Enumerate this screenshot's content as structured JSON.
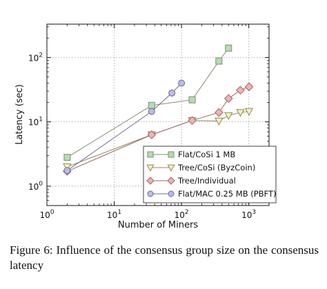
{
  "chart_data": {
    "type": "line",
    "xscale": "log",
    "yscale": "log",
    "xlim": [
      1,
      2000
    ],
    "ylim": [
      0.5,
      330
    ],
    "xlabel": "Number of Miners",
    "ylabel": "Latency (sec)",
    "xticks": [
      {
        "value": 1,
        "base": "10",
        "exp": "0"
      },
      {
        "value": 10,
        "base": "10",
        "exp": "1"
      },
      {
        "value": 100,
        "base": "10",
        "exp": "2"
      },
      {
        "value": 1000,
        "base": "10",
        "exp": "3"
      }
    ],
    "yticks": [
      {
        "value": 1,
        "base": "10",
        "exp": "0"
      },
      {
        "value": 10,
        "base": "10",
        "exp": "1"
      },
      {
        "value": 100,
        "base": "10",
        "exp": "2"
      }
    ],
    "grid": true,
    "legend_position": "bottom-right",
    "series": [
      {
        "name": "Flat/CoSi 1 MB",
        "marker": "square",
        "color": "#7a8f6e",
        "fill": "#b6dcb0",
        "points": [
          [
            2,
            2.8
          ],
          [
            36,
            18
          ],
          [
            144,
            22
          ],
          [
            360,
            88
          ],
          [
            500,
            140
          ]
        ]
      },
      {
        "name": "Tree/CoSi (ByzCoin)",
        "marker": "triangle-down",
        "color": "#8f8a5a",
        "fill": "#f4f0b8",
        "points": [
          [
            2,
            2.0
          ],
          [
            36,
            6.3
          ],
          [
            144,
            10.5
          ],
          [
            360,
            10.3
          ],
          [
            500,
            12.5
          ],
          [
            750,
            14
          ],
          [
            1008,
            14.5
          ]
        ]
      },
      {
        "name": "Tree/Individual",
        "marker": "diamond",
        "color": "#a06464",
        "fill": "#f2b2b2",
        "points": [
          [
            2,
            1.7
          ],
          [
            36,
            6.3
          ],
          [
            144,
            10.5
          ],
          [
            360,
            14
          ],
          [
            500,
            23
          ],
          [
            750,
            31
          ],
          [
            1008,
            35
          ]
        ]
      },
      {
        "name": "Flat/MAC 0.25 MB (PBFT)",
        "marker": "circle",
        "color": "#6a6a90",
        "fill": "#babaf0",
        "points": [
          [
            2,
            1.75
          ],
          [
            36,
            14.5
          ],
          [
            72,
            28
          ],
          [
            100,
            40
          ]
        ]
      }
    ]
  },
  "caption": {
    "text": "Figure 6: Influence of the consensus group size on the consensus latency"
  }
}
